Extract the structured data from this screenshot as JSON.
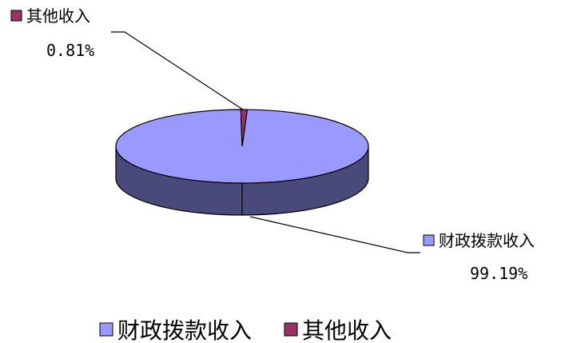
{
  "chart_data": {
    "type": "pie",
    "style": "3d",
    "title": "",
    "legend_position": "bottom",
    "slices": [
      {
        "label": "财政拨款收入",
        "value": 99.19,
        "value_label": "99.19%",
        "color": "#9999ff"
      },
      {
        "label": "其他收入",
        "value": 0.81,
        "value_label": "0.81%",
        "color": "#993366"
      }
    ]
  }
}
